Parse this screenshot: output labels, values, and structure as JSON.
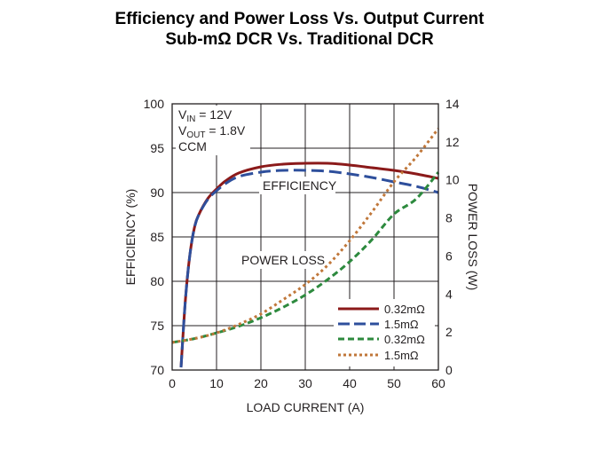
{
  "page": {
    "title_line1": "Efficiency and Power Loss Vs. Output Current",
    "title_line2": "Sub-mΩ DCR Vs. Traditional DCR"
  },
  "chart_data": {
    "type": "line",
    "title": "Efficiency and Power Loss Vs. Output Current",
    "subtitle": "Sub-mΩ DCR Vs. Traditional DCR",
    "xlabel": "LOAD CURRENT (A)",
    "ylabel_left": "EFFICIENCY (%)",
    "ylabel_right": "POWER LOSS (W)",
    "xlim": [
      0,
      60
    ],
    "ylim_left": [
      70,
      100
    ],
    "ylim_right": [
      0,
      14
    ],
    "x_ticks": [
      0,
      10,
      20,
      30,
      40,
      50,
      60
    ],
    "y_left_ticks": [
      70,
      75,
      80,
      85,
      90,
      95,
      100
    ],
    "y_right_ticks": [
      0,
      2,
      4,
      6,
      8,
      10,
      12,
      14
    ],
    "grid": true,
    "conditions": {
      "vin_main": "V",
      "vin_sub": "IN",
      "vin_value": " = 12V",
      "vout_main": "V",
      "vout_sub": "OUT",
      "vout_value": " = 1.8V",
      "mode": "CCM"
    },
    "annotations": {
      "efficiency": "EFFICIENCY",
      "power_loss": "POWER LOSS"
    },
    "colors": {
      "red": "#8b1a1a",
      "blue": "#2e4f9c",
      "green": "#2d8a3e",
      "orange": "#c0773a",
      "grid": "#231f20"
    },
    "series": [
      {
        "name": "0.32mΩ",
        "axis": "left",
        "color": "#8b1a1a",
        "dash": "solid",
        "x": [
          2,
          3,
          4,
          5,
          6,
          8,
          10,
          12,
          15,
          20,
          25,
          30,
          35,
          40,
          45,
          50,
          55,
          60
        ],
        "values": [
          70.3,
          78,
          83,
          86,
          87.5,
          89.3,
          90.4,
          91.3,
          92.2,
          92.9,
          93.2,
          93.3,
          93.3,
          93.1,
          92.8,
          92.5,
          92.1,
          91.6
        ]
      },
      {
        "name": "1.5mΩ",
        "axis": "left",
        "color": "#2e4f9c",
        "dash": "long",
        "x": [
          2,
          3,
          4,
          5,
          6,
          8,
          10,
          12,
          15,
          20,
          25,
          30,
          35,
          40,
          45,
          50,
          55,
          60
        ],
        "values": [
          70.3,
          78,
          83,
          86,
          87.5,
          89.2,
          90.2,
          91,
          91.8,
          92.3,
          92.5,
          92.5,
          92.4,
          92.1,
          91.7,
          91.2,
          90.7,
          90.0
        ]
      },
      {
        "name": "0.32mΩ",
        "axis": "right",
        "color": "#2d8a3e",
        "dash": "medium",
        "x": [
          0,
          5,
          10,
          15,
          20,
          25,
          30,
          35,
          40,
          45,
          50,
          55,
          60
        ],
        "values": [
          1.45,
          1.65,
          1.95,
          2.3,
          2.75,
          3.3,
          3.95,
          4.75,
          5.7,
          6.85,
          8.2,
          9.0,
          10.4
        ]
      },
      {
        "name": "1.5mΩ",
        "axis": "right",
        "color": "#c0773a",
        "dash": "dotted",
        "x": [
          0,
          5,
          10,
          15,
          20,
          25,
          30,
          35,
          40,
          45,
          50,
          55,
          60
        ],
        "values": [
          1.45,
          1.65,
          1.95,
          2.4,
          2.95,
          3.7,
          4.5,
          5.5,
          6.8,
          8.3,
          9.9,
          11.2,
          12.7
        ]
      }
    ]
  }
}
